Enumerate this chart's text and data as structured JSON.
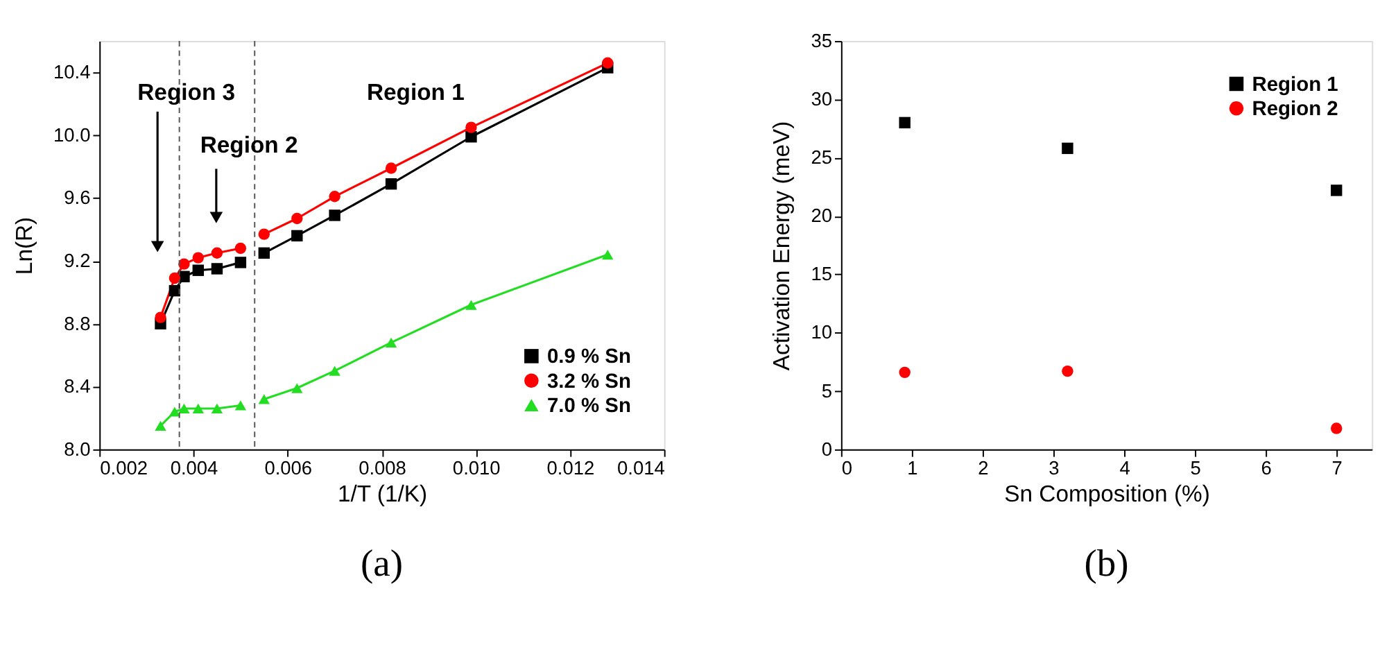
{
  "chart_data": [
    {
      "type": "line",
      "xlabel": "1/T (1/K)",
      "ylabel": "Ln(R)",
      "xlim": [
        0.002,
        0.014
      ],
      "xticks": [
        0.002,
        0.004,
        0.006,
        0.008,
        {
          "value": 0.01,
          "label": "0.010"
        },
        0.012,
        0.014
      ],
      "ylim": [
        8.0,
        10.6
      ],
      "yticks": [
        {
          "value": 8.0,
          "label": "8.0"
        },
        8.4,
        8.8,
        9.2,
        9.6,
        {
          "value": 10.0,
          "label": "10.0"
        },
        10.4
      ],
      "x": [
        0.0033,
        0.0036,
        0.0038,
        0.0041,
        0.0045,
        0.005,
        0.0053,
        0.0055,
        0.0062,
        0.007,
        0.0082,
        0.0099,
        0.0128
      ],
      "series": [
        {
          "name": "0.9 % Sn",
          "color": "#000000",
          "marker": "square",
          "values": [
            8.8,
            9.01,
            9.1,
            9.14,
            9.15,
            9.19,
            null,
            9.25,
            9.36,
            9.49,
            9.69,
            9.99,
            10.43
          ]
        },
        {
          "name": "3.2 % Sn",
          "color": "#ff0000",
          "marker": "circle",
          "values": [
            8.84,
            9.09,
            9.18,
            9.22,
            9.25,
            9.28,
            null,
            9.37,
            9.47,
            9.61,
            9.79,
            10.05,
            10.46
          ]
        },
        {
          "name": "7.0 % Sn",
          "color": "#22dd22",
          "marker": "triangle",
          "values": [
            8.15,
            8.24,
            8.26,
            8.26,
            8.26,
            8.28,
            null,
            8.32,
            8.39,
            8.5,
            8.68,
            8.92,
            9.24
          ]
        }
      ],
      "ref_lines": [
        {
          "axis": "x",
          "value": 0.0037,
          "line_style": "dashed",
          "color": "#555555"
        },
        {
          "axis": "x",
          "value": 0.0053,
          "line_style": "dashed",
          "color": "#555555"
        }
      ],
      "annotations": [
        "Region 3",
        "Region 2",
        "Region 1",
        "(a)"
      ],
      "legend": "bottom right",
      "grid": false,
      "line_style": "solid"
    },
    {
      "type": "scatter",
      "xlabel": "Sn Composition (%)",
      "ylabel": "Activation Energy (meV)",
      "xlim": [
        0,
        7.5
      ],
      "xticks": [
        0,
        1,
        2,
        3,
        4,
        5,
        6,
        7
      ],
      "ylim": [
        0,
        35
      ],
      "yticks": [
        0,
        5,
        10,
        15,
        20,
        25,
        30,
        35
      ],
      "x": [
        0.9,
        3.2,
        7
      ],
      "series": [
        {
          "name": "Region 1",
          "color": "#000000",
          "marker": "square",
          "values": [
            28.0,
            25.8,
            22.2
          ]
        },
        {
          "name": "Region 2",
          "color": "#ff0000",
          "marker": "circle",
          "values": [
            6.6,
            6.7,
            1.8
          ]
        }
      ],
      "annotations": [
        "(b)"
      ],
      "legend": "top right",
      "grid": false
    }
  ]
}
